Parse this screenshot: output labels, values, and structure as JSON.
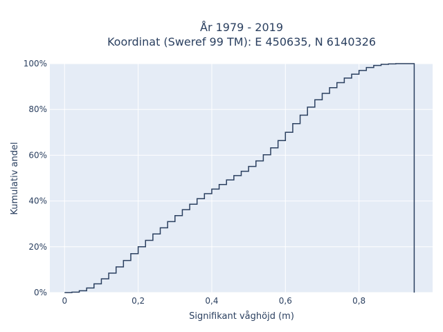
{
  "chart_data": {
    "type": "line",
    "line_shape": "step",
    "title": [
      "År 1979 - 2019",
      "Koordinat (Sweref 99 TM): E 450635, N 6140326"
    ],
    "xlabel": "Signifikant våghöjd (m)",
    "ylabel": "Kumulativ andel",
    "xlim": [
      -0.04,
      1.0
    ],
    "ylim": [
      0,
      1.0
    ],
    "x_ticks": [
      0,
      0.2,
      0.4,
      0.6,
      0.8
    ],
    "x_tick_labels": [
      "0",
      "0,2",
      "0,4",
      "0,6",
      "0,8"
    ],
    "y_ticks": [
      0,
      0.2,
      0.4,
      0.6,
      0.8,
      1.0
    ],
    "y_tick_labels": [
      "0%",
      "20%",
      "40%",
      "60%",
      "80%",
      "100%"
    ],
    "grid": true,
    "legend": "none",
    "colors": {
      "line": "#2a3f5f",
      "plot_bg": "#e5ecf6",
      "grid": "#ffffff",
      "text": "#2a3f5f"
    },
    "series": [
      {
        "x": [
          0.0,
          0.02,
          0.04,
          0.06,
          0.08,
          0.1,
          0.12,
          0.14,
          0.16,
          0.18,
          0.2,
          0.22,
          0.24,
          0.26,
          0.28,
          0.3,
          0.32,
          0.34,
          0.36,
          0.38,
          0.4,
          0.42,
          0.44,
          0.46,
          0.48,
          0.5,
          0.52,
          0.54,
          0.56,
          0.58,
          0.6,
          0.62,
          0.64,
          0.66,
          0.68,
          0.7,
          0.72,
          0.74,
          0.76,
          0.78,
          0.8,
          0.82,
          0.84,
          0.86,
          0.88,
          0.9,
          0.92,
          0.94,
          0.95,
          0.95
        ],
        "y": [
          0.0,
          0.002,
          0.008,
          0.02,
          0.038,
          0.06,
          0.085,
          0.112,
          0.14,
          0.17,
          0.2,
          0.228,
          0.256,
          0.283,
          0.31,
          0.336,
          0.362,
          0.386,
          0.41,
          0.432,
          0.452,
          0.472,
          0.492,
          0.511,
          0.53,
          0.551,
          0.575,
          0.602,
          0.632,
          0.664,
          0.7,
          0.738,
          0.775,
          0.81,
          0.842,
          0.87,
          0.895,
          0.917,
          0.937,
          0.954,
          0.97,
          0.983,
          0.992,
          0.997,
          0.999,
          1.0,
          1.0,
          1.0,
          1.0,
          0.0
        ]
      }
    ]
  }
}
